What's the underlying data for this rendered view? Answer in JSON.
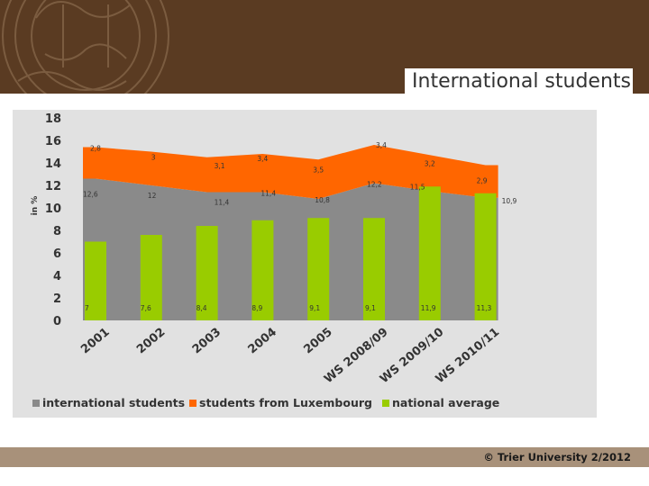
{
  "slide": {
    "title": "International students",
    "footer": "© Trier University 2/2012"
  },
  "colors": {
    "header_band": "#5a3b22",
    "footer_band": "#a8917a",
    "chart_panel": "#e1e1e1",
    "international": "#8a8a8a",
    "luxembourg": "#ff6600",
    "national": "#99cc00"
  },
  "chart_data": {
    "type": "bar",
    "title": "",
    "xlabel": "",
    "ylabel": "in %",
    "ylim": [
      0,
      18
    ],
    "yticks": [
      0,
      2,
      4,
      6,
      8,
      10,
      12,
      14,
      16,
      18
    ],
    "grid": false,
    "legend_position": "bottom",
    "categories": [
      "2001",
      "2002",
      "2003",
      "2004",
      "2005",
      "WS 2008/09",
      "WS 2009/10",
      "WS 2010/11"
    ],
    "series": [
      {
        "name": "international students",
        "kind": "area",
        "color": "#8a8a8a",
        "values": [
          12.6,
          12,
          11.4,
          11.4,
          10.8,
          12.2,
          11.5,
          10.9
        ],
        "labels": [
          "12,6",
          "12",
          "11,4",
          "11,4",
          "10,8",
          "12,2",
          "11,5",
          "10,9"
        ]
      },
      {
        "name": "students from Luxembourg",
        "kind": "stacked-area",
        "color": "#ff6600",
        "values": [
          2.8,
          3,
          3.1,
          3.4,
          3.5,
          3.4,
          3.2,
          2.9
        ],
        "labels": [
          "2,8",
          "3",
          "3,1",
          "3,4",
          "3,5",
          "3,4",
          "3,2",
          "2,9"
        ]
      },
      {
        "name": "national average",
        "kind": "bar",
        "color": "#99cc00",
        "values": [
          7,
          7.6,
          8.4,
          8.9,
          9.1,
          9.1,
          11.9,
          11.3
        ],
        "labels": [
          "7",
          "7,6",
          "8,4",
          "8,9",
          "9,1",
          "9,1",
          "11,9",
          "11,3"
        ]
      }
    ]
  }
}
